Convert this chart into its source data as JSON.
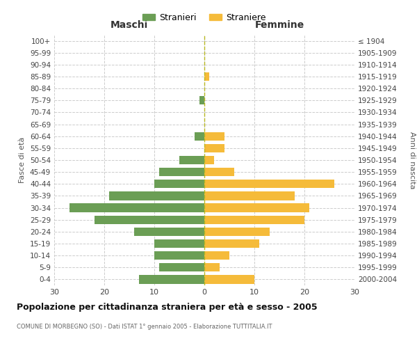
{
  "age_groups": [
    "0-4",
    "5-9",
    "10-14",
    "15-19",
    "20-24",
    "25-29",
    "30-34",
    "35-39",
    "40-44",
    "45-49",
    "50-54",
    "55-59",
    "60-64",
    "65-69",
    "70-74",
    "75-79",
    "80-84",
    "85-89",
    "90-94",
    "95-99",
    "100+"
  ],
  "birth_years": [
    "2000-2004",
    "1995-1999",
    "1990-1994",
    "1985-1989",
    "1980-1984",
    "1975-1979",
    "1970-1974",
    "1965-1969",
    "1960-1964",
    "1955-1959",
    "1950-1954",
    "1945-1949",
    "1940-1944",
    "1935-1939",
    "1930-1934",
    "1925-1929",
    "1920-1924",
    "1915-1919",
    "1910-1914",
    "1905-1909",
    "≤ 1904"
  ],
  "maschi": [
    13,
    9,
    10,
    10,
    14,
    22,
    27,
    19,
    10,
    9,
    5,
    0,
    2,
    0,
    0,
    1,
    0,
    0,
    0,
    0,
    0
  ],
  "femmine": [
    10,
    3,
    5,
    11,
    13,
    20,
    21,
    18,
    26,
    6,
    2,
    4,
    4,
    0,
    0,
    0,
    0,
    1,
    0,
    0,
    0
  ],
  "maschi_color": "#6b9e55",
  "femmine_color": "#f5bb3a",
  "grid_color": "#cccccc",
  "dashed_line_color": "#b8b820",
  "title": "Popolazione per cittadinanza straniera per età e sesso - 2005",
  "subtitle": "COMUNE DI MORBEGNO (SO) - Dati ISTAT 1° gennaio 2005 - Elaborazione TUTTITALIA.IT",
  "xlabel_left": "Maschi",
  "xlabel_right": "Femmine",
  "ylabel_left": "Fasce di età",
  "ylabel_right": "Anni di nascita",
  "xlim": 30,
  "legend_stranieri": "Stranieri",
  "legend_straniere": "Straniere",
  "background_color": "#ffffff"
}
